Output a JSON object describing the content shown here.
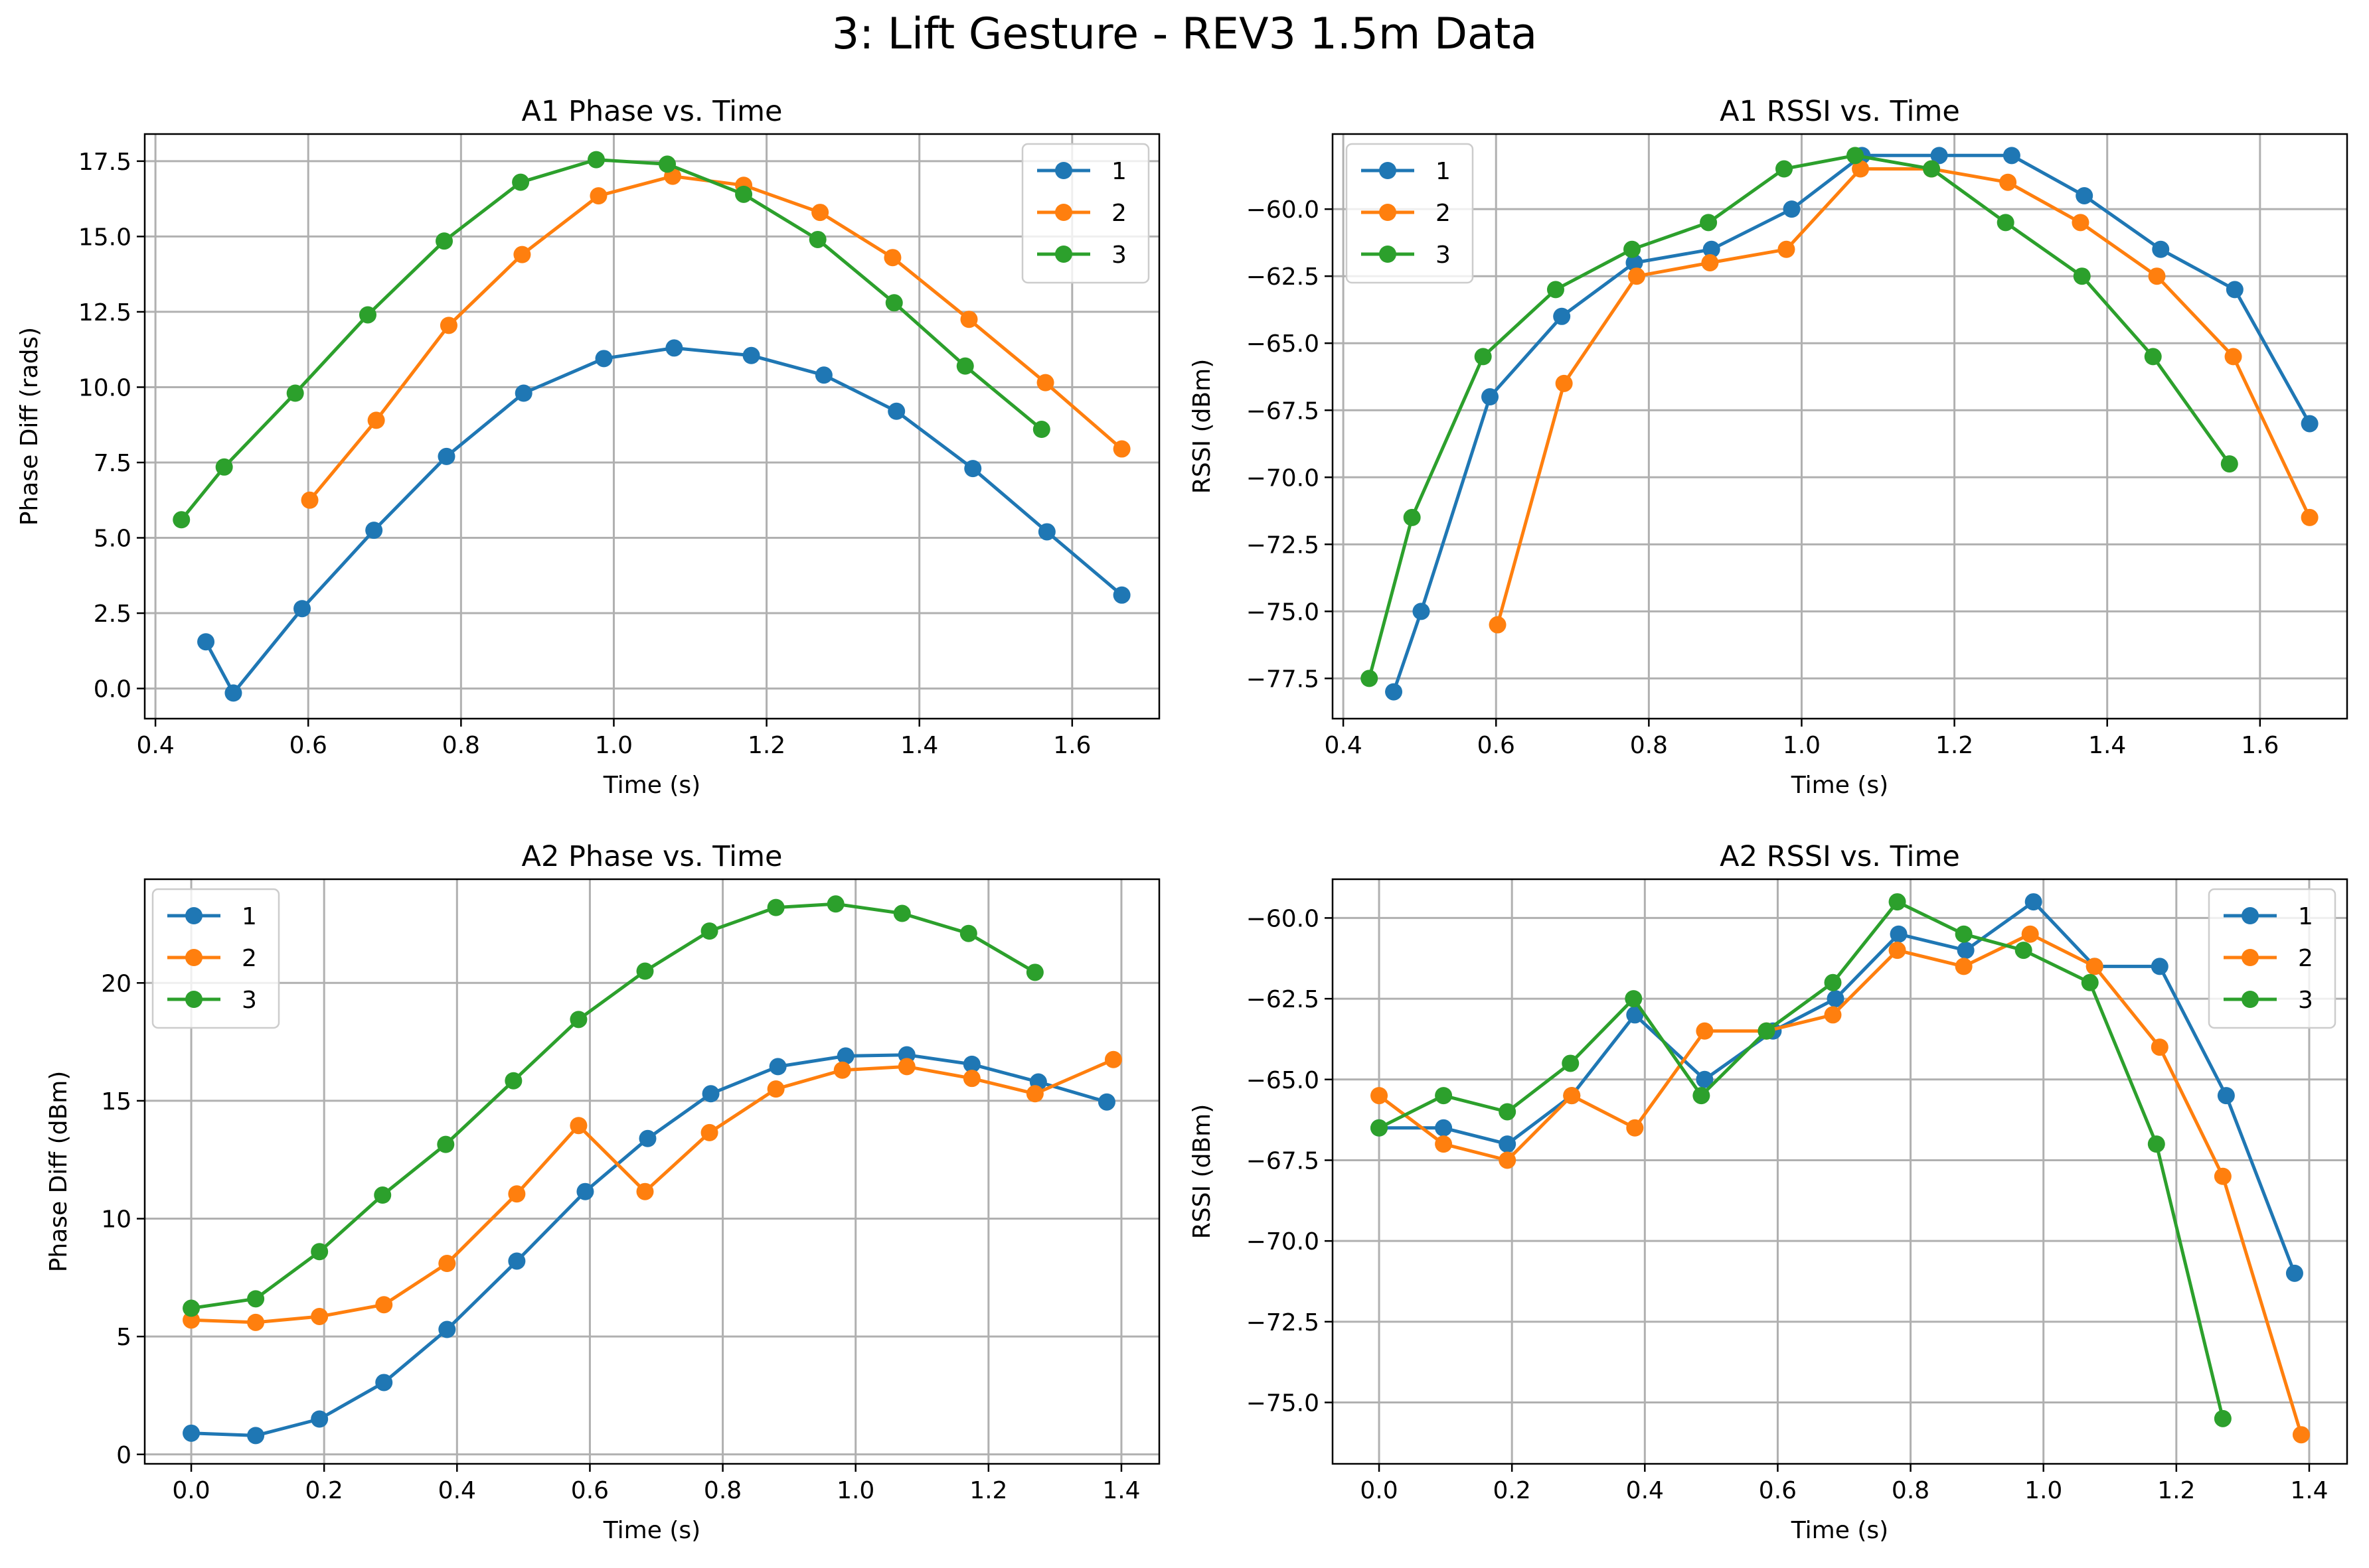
{
  "figure": {
    "title": "3: Lift Gesture - REV3 1.5m Data",
    "colors": {
      "1": "#1f77b4",
      "2": "#ff7f0e",
      "3": "#2ca02c",
      "grid": "#b0b0b0",
      "axes": "#000000"
    }
  },
  "chart_data": [
    {
      "type": "line",
      "title": "A1 Phase vs. Time",
      "xlabel": "Time (s)",
      "ylabel": "Phase Diff (rads)",
      "xlim": [
        0.386,
        1.714
      ],
      "ylim": [
        -1.0,
        18.4
      ],
      "xticks": [
        0.4,
        0.6,
        0.8,
        1.0,
        1.2,
        1.4,
        1.6
      ],
      "xtick_labels": [
        "0.4",
        "0.6",
        "0.8",
        "1.0",
        "1.2",
        "1.4",
        "1.6"
      ],
      "yticks": [
        0.0,
        2.5,
        5.0,
        7.5,
        10.0,
        12.5,
        15.0,
        17.5
      ],
      "ytick_labels": [
        "0.0",
        "2.5",
        "5.0",
        "7.5",
        "10.0",
        "12.5",
        "15.0",
        "17.5"
      ],
      "grid": true,
      "legend": "upper right",
      "series": [
        {
          "name": "1",
          "color": "#1f77b4",
          "x": [
            0.466,
            0.502,
            0.592,
            0.686,
            0.781,
            0.882,
            0.987,
            1.079,
            1.18,
            1.275,
            1.37,
            1.47,
            1.567,
            1.665
          ],
          "y": [
            1.55,
            -0.15,
            2.65,
            5.25,
            7.7,
            9.8,
            10.95,
            11.3,
            11.05,
            10.4,
            9.2,
            7.3,
            5.2,
            3.1
          ]
        },
        {
          "name": "2",
          "color": "#ff7f0e",
          "x": [
            0.602,
            0.689,
            0.784,
            0.88,
            0.98,
            1.077,
            1.17,
            1.27,
            1.365,
            1.465,
            1.565,
            1.665
          ],
          "y": [
            6.25,
            8.9,
            12.05,
            14.4,
            16.35,
            17.0,
            16.7,
            15.8,
            14.3,
            12.25,
            10.15,
            7.95
          ]
        },
        {
          "name": "3",
          "color": "#2ca02c",
          "x": [
            0.434,
            0.49,
            0.583,
            0.678,
            0.778,
            0.878,
            0.977,
            1.07,
            1.17,
            1.267,
            1.367,
            1.46,
            1.56
          ],
          "y": [
            5.6,
            7.35,
            9.8,
            12.4,
            14.85,
            16.8,
            17.55,
            17.4,
            16.4,
            14.9,
            12.8,
            10.7,
            8.6
          ]
        }
      ]
    },
    {
      "type": "line",
      "title": "A1 RSSI vs. Time",
      "xlabel": "Time (s)",
      "ylabel": "RSSI (dBm)",
      "xlim": [
        0.386,
        1.714
      ],
      "ylim": [
        -79.0,
        -57.2
      ],
      "xticks": [
        0.4,
        0.6,
        0.8,
        1.0,
        1.2,
        1.4,
        1.6
      ],
      "xtick_labels": [
        "0.4",
        "0.6",
        "0.8",
        "1.0",
        "1.2",
        "1.4",
        "1.6"
      ],
      "yticks": [
        -77.5,
        -75.0,
        -72.5,
        -70.0,
        -67.5,
        -65.0,
        -62.5,
        -60.0
      ],
      "ytick_labels": [
        "−77.5",
        "−75.0",
        "−72.5",
        "−70.0",
        "−67.5",
        "−65.0",
        "−62.5",
        "−60.0"
      ],
      "grid": true,
      "legend": "upper left",
      "series": [
        {
          "name": "1",
          "color": "#1f77b4",
          "x": [
            0.466,
            0.502,
            0.592,
            0.686,
            0.781,
            0.882,
            0.987,
            1.079,
            1.18,
            1.275,
            1.37,
            1.47,
            1.567,
            1.665
          ],
          "y": [
            -78.0,
            -75.0,
            -67.0,
            -64.0,
            -62.0,
            -61.5,
            -60.0,
            -58.0,
            -58.0,
            -58.0,
            -59.5,
            -61.5,
            -63.0,
            -68.0
          ]
        },
        {
          "name": "2",
          "color": "#ff7f0e",
          "x": [
            0.602,
            0.689,
            0.784,
            0.88,
            0.98,
            1.077,
            1.17,
            1.27,
            1.365,
            1.465,
            1.565,
            1.665
          ],
          "y": [
            -75.5,
            -66.5,
            -62.5,
            -62.0,
            -61.5,
            -58.5,
            -58.5,
            -59.0,
            -60.5,
            -62.5,
            -65.5,
            -71.5
          ]
        },
        {
          "name": "3",
          "color": "#2ca02c",
          "x": [
            0.434,
            0.49,
            0.583,
            0.678,
            0.778,
            0.878,
            0.977,
            1.07,
            1.17,
            1.267,
            1.367,
            1.46,
            1.56
          ],
          "y": [
            -77.5,
            -71.5,
            -65.5,
            -63.0,
            -61.5,
            -60.5,
            -58.5,
            -58.0,
            -58.5,
            -60.5,
            -62.5,
            -65.5,
            -69.5
          ]
        }
      ]
    },
    {
      "type": "line",
      "title": "A2 Phase vs. Time",
      "xlabel": "Time (s)",
      "ylabel": "Phase Diff (dBm)",
      "xlim": [
        -0.07,
        1.457
      ],
      "ylim": [
        -0.4,
        24.4
      ],
      "xticks": [
        0.0,
        0.2,
        0.4,
        0.6,
        0.8,
        1.0,
        1.2,
        1.4
      ],
      "xtick_labels": [
        "0.0",
        "0.2",
        "0.4",
        "0.6",
        "0.8",
        "1.0",
        "1.2",
        "1.4"
      ],
      "yticks": [
        0,
        5,
        10,
        15,
        20
      ],
      "ytick_labels": [
        "0",
        "5",
        "10",
        "15",
        "20"
      ],
      "grid": true,
      "legend": "upper left",
      "series": [
        {
          "name": "1",
          "color": "#1f77b4",
          "x": [
            0.0,
            0.097,
            0.193,
            0.29,
            0.385,
            0.49,
            0.593,
            0.687,
            0.782,
            0.883,
            0.985,
            1.077,
            1.175,
            1.275,
            1.378
          ],
          "y": [
            0.9,
            0.8,
            1.5,
            3.05,
            5.3,
            8.2,
            11.15,
            13.4,
            15.3,
            16.45,
            16.9,
            16.95,
            16.55,
            15.8,
            14.95
          ]
        },
        {
          "name": "2",
          "color": "#ff7f0e",
          "x": [
            0.0,
            0.097,
            0.193,
            0.29,
            0.385,
            0.49,
            0.583,
            0.683,
            0.78,
            0.88,
            0.98,
            1.077,
            1.175,
            1.27,
            1.388
          ],
          "y": [
            5.7,
            5.6,
            5.85,
            6.35,
            8.1,
            11.05,
            13.95,
            11.15,
            13.65,
            15.5,
            16.3,
            16.45,
            15.95,
            15.3,
            16.75
          ]
        },
        {
          "name": "3",
          "color": "#2ca02c",
          "x": [
            0.0,
            0.097,
            0.193,
            0.288,
            0.383,
            0.485,
            0.583,
            0.683,
            0.78,
            0.88,
            0.97,
            1.07,
            1.17,
            1.27
          ],
          "y": [
            6.2,
            6.6,
            8.6,
            11.0,
            13.15,
            15.85,
            18.45,
            20.5,
            22.2,
            23.2,
            23.35,
            22.95,
            22.1,
            20.45
          ]
        }
      ]
    },
    {
      "type": "line",
      "title": "A2 RSSI vs. Time",
      "xlabel": "Time (s)",
      "ylabel": "RSSI (dBm)",
      "xlim": [
        -0.07,
        1.457
      ],
      "ylim": [
        -76.9,
        -58.8
      ],
      "xticks": [
        0.0,
        0.2,
        0.4,
        0.6,
        0.8,
        1.0,
        1.2,
        1.4
      ],
      "xtick_labels": [
        "0.0",
        "0.2",
        "0.4",
        "0.6",
        "0.8",
        "1.0",
        "1.2",
        "1.4"
      ],
      "yticks": [
        -75.0,
        -72.5,
        -70.0,
        -67.5,
        -65.0,
        -62.5,
        -60.0
      ],
      "ytick_labels": [
        "−75.0",
        "−72.5",
        "−70.0",
        "−67.5",
        "−65.0",
        "−62.5",
        "−60.0"
      ],
      "grid": true,
      "legend": "upper right",
      "series": [
        {
          "name": "1",
          "color": "#1f77b4",
          "x": [
            0.0,
            0.097,
            0.193,
            0.29,
            0.385,
            0.49,
            0.593,
            0.687,
            0.782,
            0.883,
            0.985,
            1.077,
            1.175,
            1.275,
            1.378
          ],
          "y": [
            -66.5,
            -66.5,
            -67.0,
            -65.5,
            -63.0,
            -65.0,
            -63.5,
            -62.5,
            -60.5,
            -61.0,
            -59.5,
            -61.5,
            -61.5,
            -65.5,
            -71.0
          ]
        },
        {
          "name": "2",
          "color": "#ff7f0e",
          "x": [
            0.0,
            0.097,
            0.193,
            0.29,
            0.385,
            0.49,
            0.583,
            0.683,
            0.78,
            0.88,
            0.98,
            1.077,
            1.175,
            1.27,
            1.388
          ],
          "y": [
            -65.5,
            -67.0,
            -67.5,
            -65.5,
            -66.5,
            -63.5,
            -63.5,
            -63.0,
            -61.0,
            -61.5,
            -60.5,
            -61.5,
            -64.0,
            -68.0,
            -76.0
          ]
        },
        {
          "name": "3",
          "color": "#2ca02c",
          "x": [
            0.0,
            0.097,
            0.193,
            0.288,
            0.383,
            0.485,
            0.583,
            0.683,
            0.78,
            0.88,
            0.97,
            1.07,
            1.17,
            1.27
          ],
          "y": [
            -66.5,
            -65.5,
            -66.0,
            -64.5,
            -62.5,
            -65.5,
            -63.5,
            -62.0,
            -59.5,
            -60.5,
            -61.0,
            -62.0,
            -67.0,
            -75.5
          ]
        }
      ]
    }
  ]
}
